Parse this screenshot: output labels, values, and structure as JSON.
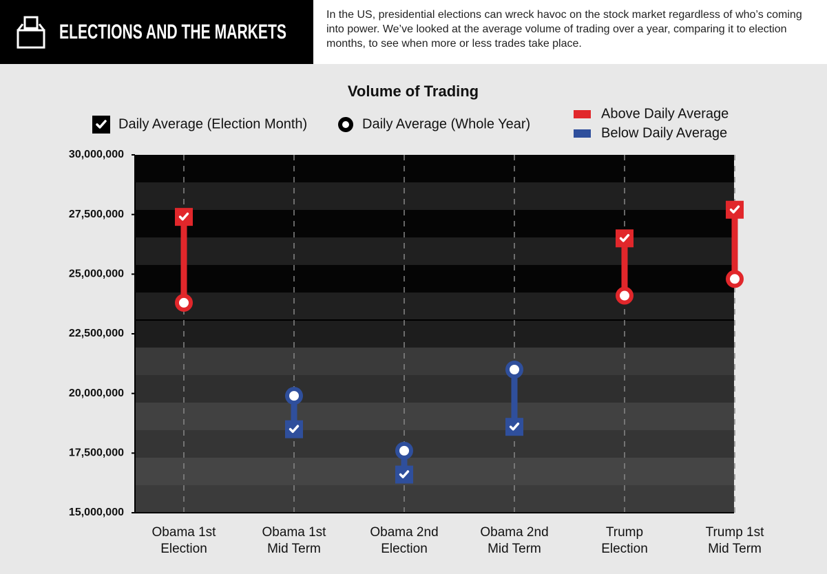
{
  "header": {
    "title": "ELECTIONS AND THE MARKETS",
    "description": "In the US, presidential elections can wreck havoc on the stock market regardless of who’s coming into power. We’ve looked at the average volume of trading over a year, comparing it to election months, to see when more or less trades take place."
  },
  "chart_data": {
    "type": "dumbbell",
    "title": "Volume of Trading",
    "categories": [
      "Obama 1st Election",
      "Obama 1st Mid Term",
      "Obama 2nd Election",
      "Obama 2nd Mid Term",
      "Trump Election",
      "Trump 1st Mid Term"
    ],
    "series": [
      {
        "name": "Daily Average (Election Month)",
        "values": [
          27400000,
          18500000,
          16600000,
          18600000,
          26500000,
          27700000
        ]
      },
      {
        "name": "Daily Average (Whole Year)",
        "values": [
          23800000,
          19900000,
          17600000,
          21000000,
          24100000,
          24800000
        ]
      }
    ],
    "status_legend": [
      {
        "name": "Above Daily Average",
        "color": "#e1272b"
      },
      {
        "name": "Below Daily Average",
        "color": "#2f4f9c"
      }
    ],
    "ylim": [
      15000000,
      30000000
    ],
    "yticks": [
      {
        "value": 15000000,
        "label": "15,000,000"
      },
      {
        "value": 17500000,
        "label": "17,500,000"
      },
      {
        "value": 20000000,
        "label": "20,000,000"
      },
      {
        "value": 22500000,
        "label": "22,500,000"
      },
      {
        "value": 25000000,
        "label": "25,000,000"
      },
      {
        "value": 27500000,
        "label": "27,500,000"
      },
      {
        "value": 30000000,
        "label": "30,000,000"
      }
    ]
  }
}
